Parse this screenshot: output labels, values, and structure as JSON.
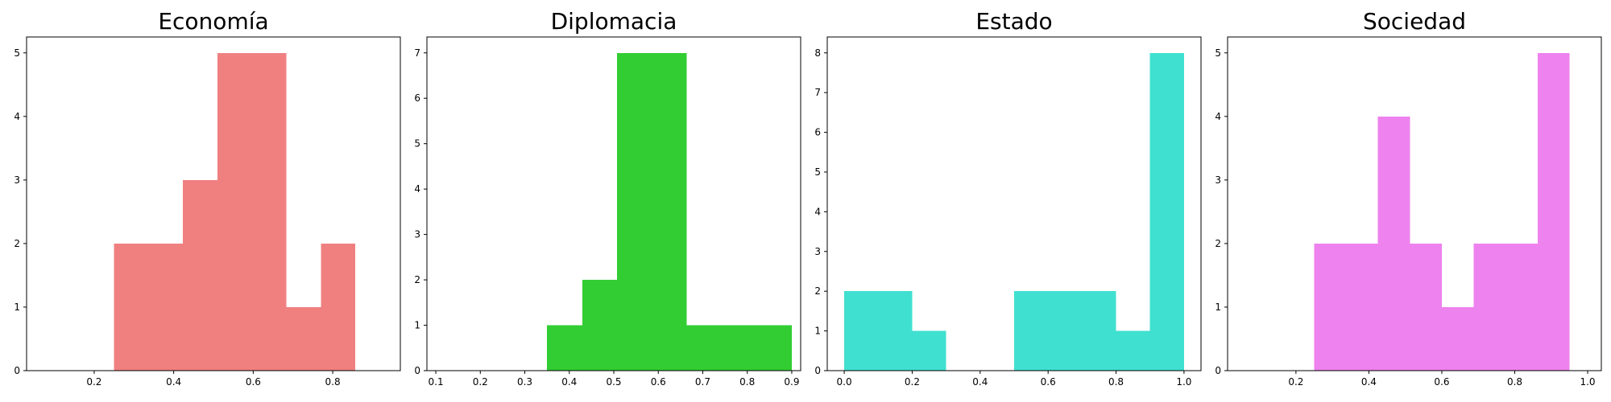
{
  "chart_data": [
    {
      "type": "bar",
      "title": "Economía",
      "xlabel": "",
      "ylabel": "",
      "color": "#F08080",
      "grid": false,
      "xlim": [
        0.03,
        0.97
      ],
      "ylim": [
        0,
        5.25
      ],
      "xticks": [
        0.2,
        0.4,
        0.6,
        0.8
      ],
      "xtick_labels": [
        "0.2",
        "0.4",
        "0.6",
        "0.8"
      ],
      "yticks": [
        0,
        1,
        2,
        3,
        4,
        5
      ],
      "ytick_labels": [
        "0",
        "1",
        "2",
        "3",
        "4",
        "5"
      ],
      "bins": [
        {
          "x0": 0.25,
          "x1": 0.337,
          "count": 2
        },
        {
          "x0": 0.337,
          "x1": 0.423,
          "count": 2
        },
        {
          "x0": 0.423,
          "x1": 0.51,
          "count": 3
        },
        {
          "x0": 0.51,
          "x1": 0.597,
          "count": 5
        },
        {
          "x0": 0.597,
          "x1": 0.683,
          "count": 5
        },
        {
          "x0": 0.683,
          "x1": 0.77,
          "count": 1
        },
        {
          "x0": 0.77,
          "x1": 0.857,
          "count": 2
        }
      ]
    },
    {
      "type": "bar",
      "title": "Diplomacia",
      "xlabel": "",
      "ylabel": "",
      "color": "#32CD32",
      "grid": false,
      "xlim": [
        0.08,
        0.92
      ],
      "ylim": [
        0,
        7.35
      ],
      "xticks": [
        0.1,
        0.2,
        0.3,
        0.4,
        0.5,
        0.6,
        0.7,
        0.8,
        0.9
      ],
      "xtick_labels": [
        "0.1",
        "0.2",
        "0.3",
        "0.4",
        "0.5",
        "0.6",
        "0.7",
        "0.8",
        "0.9"
      ],
      "yticks": [
        0,
        1,
        2,
        3,
        4,
        5,
        6,
        7
      ],
      "ytick_labels": [
        "0",
        "1",
        "2",
        "3",
        "4",
        "5",
        "6",
        "7"
      ],
      "bins": [
        {
          "x0": 0.35,
          "x1": 0.429,
          "count": 1
        },
        {
          "x0": 0.429,
          "x1": 0.507,
          "count": 2
        },
        {
          "x0": 0.507,
          "x1": 0.586,
          "count": 7
        },
        {
          "x0": 0.586,
          "x1": 0.664,
          "count": 7
        },
        {
          "x0": 0.664,
          "x1": 0.743,
          "count": 1
        },
        {
          "x0": 0.743,
          "x1": 0.821,
          "count": 1
        },
        {
          "x0": 0.821,
          "x1": 0.9,
          "count": 1
        }
      ]
    },
    {
      "type": "bar",
      "title": "Estado",
      "xlabel": "",
      "ylabel": "",
      "color": "#40E0D0",
      "grid": false,
      "xlim": [
        -0.05,
        1.05
      ],
      "ylim": [
        0,
        8.4
      ],
      "xticks": [
        0.0,
        0.2,
        0.4,
        0.6,
        0.8,
        1.0
      ],
      "xtick_labels": [
        "0.0",
        "0.2",
        "0.4",
        "0.6",
        "0.8",
        "1.0"
      ],
      "yticks": [
        0,
        1,
        2,
        3,
        4,
        5,
        6,
        7,
        8
      ],
      "ytick_labels": [
        "0",
        "1",
        "2",
        "3",
        "4",
        "5",
        "6",
        "7",
        "8"
      ],
      "bins": [
        {
          "x0": 0.0,
          "x1": 0.1,
          "count": 2
        },
        {
          "x0": 0.1,
          "x1": 0.2,
          "count": 2
        },
        {
          "x0": 0.2,
          "x1": 0.3,
          "count": 1
        },
        {
          "x0": 0.3,
          "x1": 0.4,
          "count": 0
        },
        {
          "x0": 0.4,
          "x1": 0.5,
          "count": 0
        },
        {
          "x0": 0.5,
          "x1": 0.6,
          "count": 2
        },
        {
          "x0": 0.6,
          "x1": 0.7,
          "count": 2
        },
        {
          "x0": 0.7,
          "x1": 0.8,
          "count": 2
        },
        {
          "x0": 0.8,
          "x1": 0.9,
          "count": 1
        },
        {
          "x0": 0.9,
          "x1": 1.0,
          "count": 8
        }
      ]
    },
    {
      "type": "bar",
      "title": "Sociedad",
      "xlabel": "",
      "ylabel": "",
      "color": "#EE82EE",
      "grid": false,
      "xlim": [
        0.0125,
        1.0375
      ],
      "ylim": [
        0,
        5.25
      ],
      "xticks": [
        0.2,
        0.4,
        0.6,
        0.8,
        1.0
      ],
      "xtick_labels": [
        "0.2",
        "0.4",
        "0.6",
        "0.8",
        "1.0"
      ],
      "yticks": [
        0,
        1,
        2,
        3,
        4,
        5
      ],
      "ytick_labels": [
        "0",
        "1",
        "2",
        "3",
        "4",
        "5"
      ],
      "bins": [
        {
          "x0": 0.25,
          "x1": 0.3375,
          "count": 2
        },
        {
          "x0": 0.3375,
          "x1": 0.425,
          "count": 2
        },
        {
          "x0": 0.425,
          "x1": 0.5125,
          "count": 4
        },
        {
          "x0": 0.5125,
          "x1": 0.6,
          "count": 2
        },
        {
          "x0": 0.6,
          "x1": 0.6875,
          "count": 1
        },
        {
          "x0": 0.6875,
          "x1": 0.775,
          "count": 2
        },
        {
          "x0": 0.775,
          "x1": 0.8625,
          "count": 2
        },
        {
          "x0": 0.8625,
          "x1": 0.95,
          "count": 5
        }
      ]
    }
  ]
}
